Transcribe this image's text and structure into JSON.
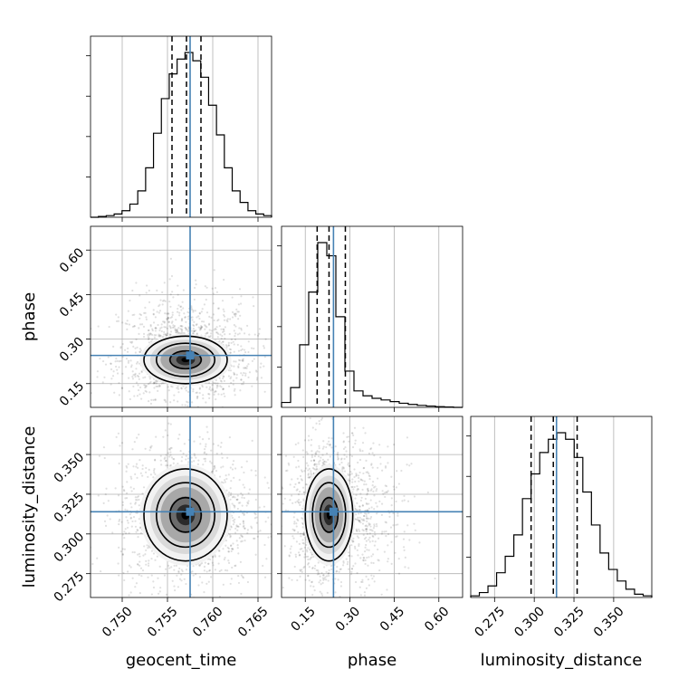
{
  "chart_data": {
    "type": "corner",
    "parameters": [
      "geocent_time",
      "phase",
      "luminosity_distance"
    ],
    "truth": {
      "geocent_time": 0.7575,
      "phase": 0.245,
      "luminosity_distance": 0.314
    },
    "quantiles": {
      "geocent_time": [
        0.7555,
        0.7571,
        0.7587
      ],
      "phase": [
        0.19,
        0.23,
        0.285
      ],
      "luminosity_distance": [
        0.298,
        0.312,
        0.327
      ]
    },
    "ranges": {
      "geocent_time": [
        0.7465,
        0.7665
      ],
      "phase": [
        0.07,
        0.68
      ],
      "luminosity_distance": [
        0.26,
        0.374
      ]
    },
    "ticks": {
      "geocent_time": {
        "values": [
          0.75,
          0.755,
          0.76,
          0.765
        ],
        "labels": [
          "0.750",
          "0.755",
          "0.760",
          "0.765"
        ]
      },
      "phase": {
        "values": [
          0.15,
          0.3,
          0.45,
          0.6
        ],
        "labels": [
          "0.15",
          "0.30",
          "0.45",
          "0.60"
        ]
      },
      "luminosity_distance": {
        "values": [
          0.275,
          0.3,
          0.325,
          0.35
        ],
        "labels": [
          "0.275",
          "0.300",
          "0.325",
          "0.350"
        ]
      }
    },
    "histograms": {
      "geocent_time": [
        0.0,
        0.005,
        0.01,
        0.02,
        0.04,
        0.08,
        0.16,
        0.3,
        0.51,
        0.72,
        0.87,
        0.96,
        1.0,
        0.95,
        0.85,
        0.68,
        0.5,
        0.3,
        0.16,
        0.09,
        0.04,
        0.02,
        0.01
      ],
      "phase": [
        0.03,
        0.12,
        0.38,
        0.7,
        1.0,
        0.92,
        0.55,
        0.22,
        0.1,
        0.07,
        0.055,
        0.045,
        0.035,
        0.025,
        0.018,
        0.012,
        0.008,
        0.004,
        0.002,
        0.0
      ],
      "luminosity_distance": [
        0.01,
        0.03,
        0.07,
        0.15,
        0.25,
        0.38,
        0.6,
        0.75,
        0.88,
        0.96,
        1.0,
        0.96,
        0.85,
        0.64,
        0.44,
        0.27,
        0.17,
        0.1,
        0.05,
        0.02,
        0.01
      ]
    },
    "grid": true,
    "truth_color": "#4682b4",
    "quantile_style": "dashed"
  }
}
